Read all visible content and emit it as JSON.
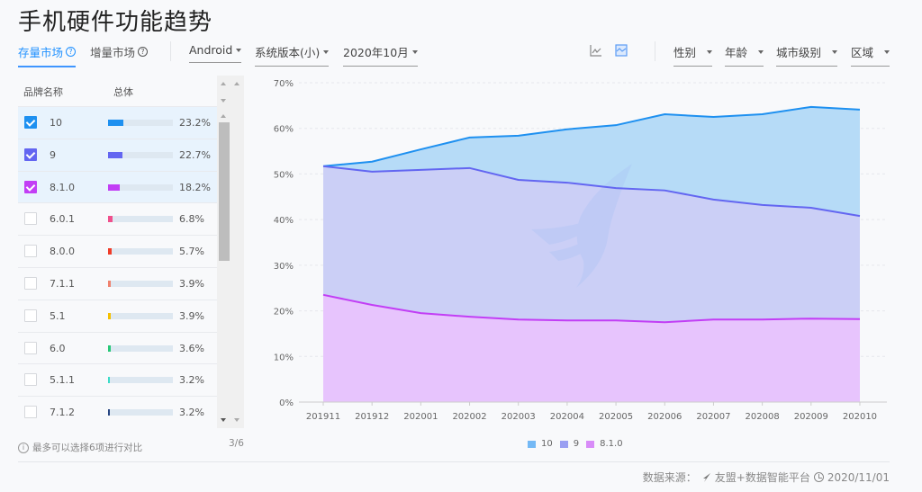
{
  "page": {
    "title": "手机硬件功能趋势"
  },
  "toolbar": {
    "market_tabs": [
      {
        "label": "存量市场",
        "active": true
      },
      {
        "label": "增量市场",
        "active": false
      }
    ],
    "help_glyph": "?",
    "filters_left": [
      {
        "label": "Android"
      },
      {
        "label": "系统版本(小)"
      },
      {
        "label": "2020年10月"
      }
    ],
    "chart_types": [
      {
        "name": "line-chart-icon",
        "active": false
      },
      {
        "name": "area-chart-icon",
        "active": true
      }
    ],
    "filters_right": [
      {
        "label": "性别"
      },
      {
        "label": "年龄"
      },
      {
        "label": "城市级别"
      },
      {
        "label": "区域"
      }
    ]
  },
  "table": {
    "headers": {
      "name": "品牌名称",
      "total": "总体"
    },
    "rows": [
      {
        "label": "10",
        "pct": "23.2%",
        "value": 23.2,
        "color": "#1e90f0",
        "checked": true
      },
      {
        "label": "9",
        "pct": "22.7%",
        "value": 22.7,
        "color": "#6366f1",
        "checked": true
      },
      {
        "label": "8.1.0",
        "pct": "18.2%",
        "value": 18.2,
        "color": "#c23ef5",
        "checked": true
      },
      {
        "label": "6.0.1",
        "pct": "6.8%",
        "value": 6.8,
        "color": "#f0508c",
        "checked": false
      },
      {
        "label": "8.0.0",
        "pct": "5.7%",
        "value": 5.7,
        "color": "#f03c28",
        "checked": false
      },
      {
        "label": "7.1.1",
        "pct": "3.9%",
        "value": 3.9,
        "color": "#f0826e",
        "checked": false
      },
      {
        "label": "5.1",
        "pct": "3.9%",
        "value": 3.9,
        "color": "#f5c000",
        "checked": false
      },
      {
        "label": "6.0",
        "pct": "3.6%",
        "value": 3.6,
        "color": "#28c878",
        "checked": false
      },
      {
        "label": "5.1.1",
        "pct": "3.2%",
        "value": 3.2,
        "color": "#3cdcc8",
        "checked": false
      },
      {
        "label": "7.1.2",
        "pct": "3.2%",
        "value": 3.2,
        "color": "#284682",
        "checked": false
      }
    ],
    "hint": "最多可以选择6项进行对比",
    "info_glyph": "i",
    "count": "3/6"
  },
  "chart_data": {
    "type": "area",
    "stacked": true,
    "title": "",
    "xlabel": "",
    "ylabel": "",
    "categories": [
      "201911",
      "201912",
      "202001",
      "202002",
      "202003",
      "202004",
      "202005",
      "202006",
      "202007",
      "202008",
      "202009",
      "202010"
    ],
    "y_ticks": [
      "0%",
      "10%",
      "20%",
      "30%",
      "40%",
      "50%",
      "60%",
      "70%"
    ],
    "ylim": [
      0,
      70
    ],
    "grid": true,
    "legend_position": "bottom",
    "series": [
      {
        "name": "10",
        "color": "#1e90f0",
        "fill": "#b6dbf7",
        "cumulative": [
          51.7,
          52.7,
          55.4,
          58.0,
          58.4,
          59.8,
          60.7,
          63.1,
          62.5,
          63.1,
          64.7,
          64.1
        ],
        "values": [
          0.0,
          2.2,
          4.5,
          6.7,
          9.7,
          11.7,
          13.8,
          16.7,
          18.1,
          19.9,
          22.1,
          23.3
        ]
      },
      {
        "name": "9",
        "color": "#6366f1",
        "fill": "#cbcff6",
        "cumulative": [
          51.7,
          50.5,
          50.9,
          51.3,
          48.7,
          48.1,
          46.9,
          46.4,
          44.4,
          43.2,
          42.6,
          40.8
        ],
        "values": [
          28.2,
          29.2,
          31.4,
          32.6,
          30.6,
          30.2,
          29.0,
          28.9,
          26.3,
          25.1,
          24.3,
          22.6
        ]
      },
      {
        "name": "8.1.0",
        "color": "#c23ef5",
        "fill": "#e7c4fd",
        "cumulative": [
          23.5,
          21.3,
          19.5,
          18.7,
          18.1,
          17.9,
          17.9,
          17.5,
          18.1,
          18.1,
          18.3,
          18.2
        ],
        "values": [
          23.5,
          21.3,
          19.5,
          18.7,
          18.1,
          17.9,
          17.9,
          17.5,
          18.1,
          18.1,
          18.3,
          18.2
        ]
      }
    ]
  },
  "legend": [
    {
      "label": "10",
      "color": "#74b9f5"
    },
    {
      "label": "9",
      "color": "#9a9ff2"
    },
    {
      "label": "8.1.0",
      "color": "#d88cf8"
    }
  ],
  "footer": {
    "source_label": "数据来源：",
    "source_name": "友盟+数据智能平台",
    "date": "2020/11/01"
  }
}
